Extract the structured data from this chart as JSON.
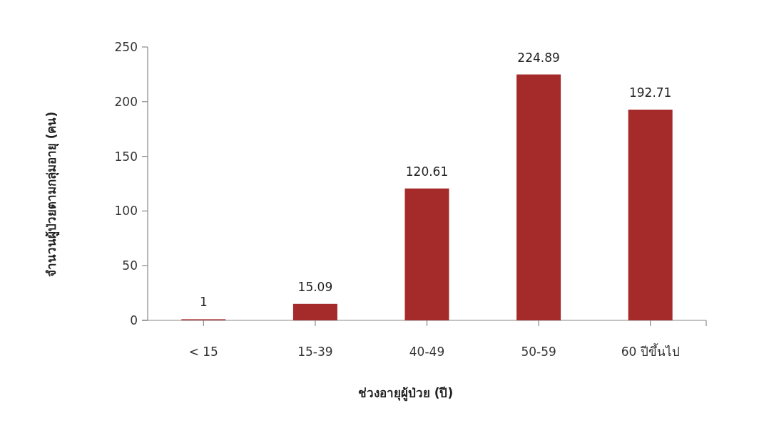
{
  "chart_data": {
    "type": "bar",
    "xlabel": "ช่วงอายุผู้ป่วย (ปี)",
    "ylabel": "จำนวนผู้ป่วยตามกลุ่มอายุ (คน)",
    "categories": [
      "< 15",
      "15-39",
      "40-49",
      "50-59",
      "60 ปีขึ้นไป"
    ],
    "values": [
      1,
      15.09,
      120.61,
      224.89,
      192.71
    ],
    "color": "#a52a2a",
    "ylim": [
      0,
      250
    ],
    "yticks": [
      0,
      50,
      100,
      150,
      200,
      250
    ],
    "data_labels": true
  }
}
